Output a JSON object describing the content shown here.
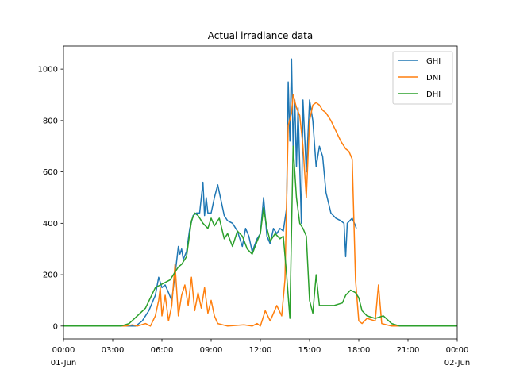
{
  "chart_data": {
    "type": "line",
    "title": "Actual irradiance data",
    "xlabel": "",
    "ylabel": "",
    "x_unit": "hours",
    "xlim": [
      0,
      24
    ],
    "ylim": [
      -50,
      1090
    ],
    "grid": false,
    "legend_position": "top-right",
    "x_ticks": [
      {
        "value": 0,
        "label": "00:00",
        "sublabel": "01-Jun"
      },
      {
        "value": 3,
        "label": "03:00",
        "sublabel": ""
      },
      {
        "value": 6,
        "label": "06:00",
        "sublabel": ""
      },
      {
        "value": 9,
        "label": "09:00",
        "sublabel": ""
      },
      {
        "value": 12,
        "label": "12:00",
        "sublabel": ""
      },
      {
        "value": 15,
        "label": "15:00",
        "sublabel": ""
      },
      {
        "value": 18,
        "label": "18:00",
        "sublabel": ""
      },
      {
        "value": 21,
        "label": "21:00",
        "sublabel": ""
      },
      {
        "value": 24,
        "label": "00:00",
        "sublabel": "02-Jun"
      }
    ],
    "y_ticks": [
      0,
      200,
      400,
      600,
      800,
      1000
    ],
    "series": [
      {
        "name": "GHI",
        "color": "#1f77b4",
        "x": [
          0,
          4.4,
          4.8,
          5.2,
          5.6,
          5.8,
          6.0,
          6.2,
          6.4,
          6.6,
          6.8,
          7.0,
          7.1,
          7.2,
          7.3,
          7.5,
          7.7,
          7.9,
          8.1,
          8.3,
          8.5,
          8.6,
          8.7,
          8.8,
          9.0,
          9.2,
          9.4,
          9.6,
          9.8,
          10.0,
          10.3,
          10.6,
          10.9,
          11.1,
          11.3,
          11.5,
          11.8,
          12.0,
          12.2,
          12.4,
          12.6,
          12.8,
          13.0,
          13.2,
          13.4,
          13.6,
          13.7,
          13.8,
          13.9,
          14.0,
          14.1,
          14.2,
          14.3,
          14.5,
          14.6,
          14.8,
          15.0,
          15.2,
          15.4,
          15.6,
          15.8,
          16.0,
          16.3,
          16.6,
          16.9,
          17.1,
          17.2,
          17.3,
          17.6,
          17.8,
          17.85
        ],
        "y": [
          0,
          0,
          20,
          60,
          120,
          190,
          150,
          160,
          130,
          100,
          200,
          310,
          280,
          300,
          260,
          290,
          380,
          430,
          440,
          440,
          560,
          430,
          500,
          440,
          440,
          500,
          550,
          490,
          430,
          410,
          400,
          370,
          310,
          380,
          350,
          290,
          340,
          360,
          500,
          350,
          320,
          380,
          360,
          380,
          370,
          460,
          950,
          720,
          1040,
          700,
          880,
          620,
          850,
          400,
          880,
          600,
          880,
          800,
          620,
          700,
          660,
          520,
          440,
          420,
          410,
          400,
          270,
          400,
          420,
          390,
          380
        ]
      },
      {
        "name": "DNI",
        "color": "#ff7f0e",
        "x": [
          0,
          3.8,
          4.2,
          4.5,
          5.0,
          5.3,
          5.6,
          5.8,
          5.9,
          6.0,
          6.2,
          6.4,
          6.6,
          6.8,
          7.0,
          7.2,
          7.4,
          7.6,
          7.8,
          8.0,
          8.2,
          8.4,
          8.6,
          8.8,
          9.0,
          9.2,
          9.4,
          10.0,
          11.0,
          11.5,
          11.8,
          12.0,
          12.3,
          12.6,
          13.0,
          13.3,
          13.5,
          13.7,
          13.9,
          14.0,
          14.2,
          14.4,
          14.6,
          14.8,
          15.0,
          15.2,
          15.4,
          15.6,
          15.8,
          16.0,
          16.3,
          16.6,
          16.9,
          17.1,
          17.2,
          17.4,
          17.6,
          17.8,
          18.0,
          18.2,
          18.5,
          19.0,
          19.2,
          19.4,
          20.0,
          24.0
        ],
        "y": [
          0,
          0,
          5,
          0,
          10,
          0,
          40,
          100,
          150,
          40,
          120,
          20,
          80,
          240,
          40,
          120,
          160,
          80,
          190,
          60,
          130,
          70,
          150,
          50,
          100,
          40,
          10,
          0,
          5,
          0,
          10,
          0,
          60,
          20,
          80,
          40,
          180,
          780,
          830,
          900,
          850,
          820,
          700,
          500,
          800,
          860,
          870,
          860,
          840,
          830,
          800,
          760,
          720,
          700,
          690,
          680,
          650,
          180,
          20,
          10,
          30,
          20,
          160,
          10,
          0,
          0
        ]
      },
      {
        "name": "DHI",
        "color": "#2ca02c",
        "x": [
          0,
          3.5,
          4.0,
          4.5,
          5.0,
          5.3,
          5.6,
          5.9,
          6.2,
          6.5,
          6.8,
          7.0,
          7.2,
          7.5,
          7.8,
          8.0,
          8.2,
          8.5,
          8.8,
          9.0,
          9.2,
          9.5,
          9.8,
          10.0,
          10.3,
          10.6,
          10.9,
          11.2,
          11.5,
          11.8,
          12.0,
          12.2,
          12.4,
          12.6,
          12.9,
          13.2,
          13.4,
          13.6,
          13.8,
          14.0,
          14.2,
          14.4,
          14.6,
          14.8,
          15.0,
          15.2,
          15.4,
          15.6,
          16.0,
          16.5,
          17.0,
          17.2,
          17.5,
          17.8,
          18.0,
          18.2,
          18.5,
          19.0,
          19.5,
          20.0,
          20.5,
          24.0
        ],
        "y": [
          0,
          0,
          10,
          40,
          70,
          110,
          150,
          160,
          170,
          180,
          210,
          230,
          240,
          270,
          410,
          440,
          430,
          400,
          380,
          420,
          390,
          420,
          340,
          360,
          310,
          370,
          350,
          300,
          280,
          330,
          360,
          460,
          380,
          330,
          360,
          340,
          350,
          200,
          30,
          700,
          500,
          400,
          380,
          350,
          100,
          50,
          200,
          80,
          80,
          80,
          90,
          120,
          140,
          130,
          110,
          60,
          40,
          30,
          40,
          10,
          0,
          0
        ]
      }
    ]
  }
}
